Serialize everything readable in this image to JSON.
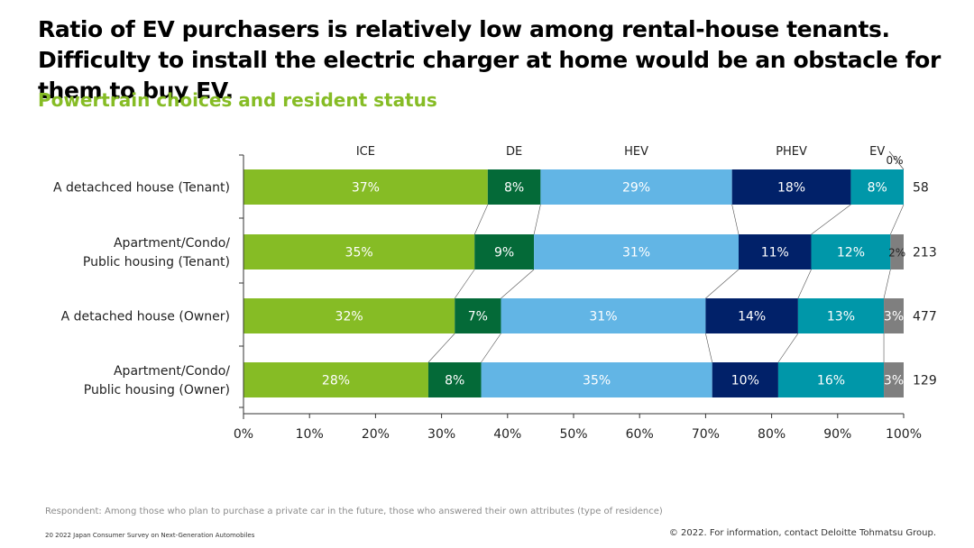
{
  "header": {
    "title": "Ratio of EV purchasers is relatively low among rental-house tenants. Difficulty to install the electric charger at home would be an obstacle for them to buy EV.",
    "subtitle": "Powertrain choices and resident status"
  },
  "footer": {
    "footnote": "Respondent: Among those who plan to purchase a private car in the future, those who answered their own attributes (type of residence)",
    "page_info": "20   2022 Japan Consumer Survey on Next-Generation Automobiles",
    "copyright": "© 2022. For information, contact Deloitte Tohmatsu Group."
  },
  "chart_data": {
    "type": "bar",
    "orientation": "horizontal",
    "stacked": true,
    "categories": [
      [
        "A detachced house (Tenant)"
      ],
      [
        "Apartment/Condo/",
        "Public housing (Tenant)"
      ],
      [
        "A detached house (Owner)"
      ],
      [
        "Apartment/Condo/",
        "Public housing (Owner)"
      ]
    ],
    "series": [
      {
        "name": "ICE",
        "color": "#86bc25",
        "values": [
          37,
          35,
          32,
          28
        ],
        "labels": [
          "37%",
          "35%",
          "32%",
          "28%"
        ]
      },
      {
        "name": "DE",
        "color": "#046a38",
        "values": [
          8,
          9,
          7,
          8
        ],
        "labels": [
          "8%",
          "9%",
          "7%",
          "8%"
        ]
      },
      {
        "name": "HEV",
        "color": "#62b5e5",
        "values": [
          29,
          31,
          31,
          35
        ],
        "labels": [
          "29%",
          "31%",
          "31%",
          "35%"
        ]
      },
      {
        "name": "PHEV",
        "color": "#012169",
        "values": [
          18,
          11,
          14,
          10
        ],
        "labels": [
          "18%",
          "11%",
          "14%",
          "10%"
        ]
      },
      {
        "name": "EV",
        "color": "#0097a9",
        "values": [
          8,
          12,
          13,
          16
        ],
        "labels": [
          "8%",
          "12%",
          "13%",
          "16%"
        ]
      },
      {
        "name": "",
        "color": "#7f7f7f",
        "values": [
          0,
          2,
          3,
          3
        ],
        "labels": [
          "0%",
          "2%",
          "3%",
          "3%"
        ]
      }
    ],
    "sample_sizes": [
      "58",
      "213",
      "477",
      "129"
    ],
    "xlim": [
      0,
      100
    ],
    "x_ticks": [
      "0%",
      "10%",
      "20%",
      "30%",
      "40%",
      "50%",
      "60%",
      "70%",
      "80%",
      "90%",
      "100%"
    ],
    "xlabel": "",
    "ylabel": "",
    "grid": false,
    "legend_position": "top"
  }
}
